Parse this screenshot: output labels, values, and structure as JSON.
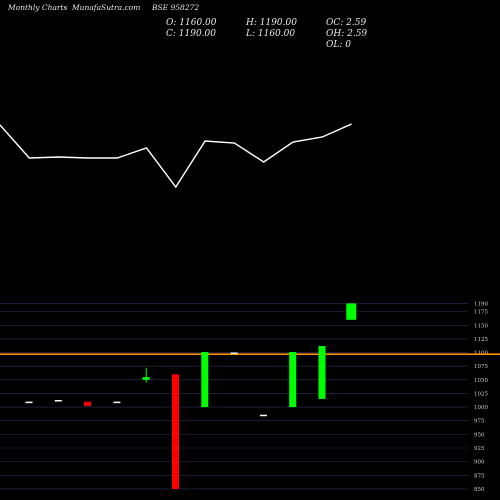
{
  "header": {
    "brand": "MunafaSutra.com",
    "left_label": "Monthly Charts",
    "separator": "-",
    "symbol": "BSE 958272"
  },
  "ohlc": {
    "open": "O: 1160.00",
    "high": "H: 1190.00",
    "oc": "OC: 2.59",
    "close": "C: 1190.00",
    "low": "L: 1160.00",
    "oh": "OH: 2.59",
    "ol": "OL: 0"
  },
  "colors": {
    "background": "#000000",
    "up": "#00ff00",
    "down": "#ff0000",
    "flat": "#ffffff",
    "line": "#ffffff",
    "grid": "#2e2e5a",
    "reference_line": "#ff8c00"
  },
  "chart_data": {
    "type": "candlestick",
    "y_axis": {
      "ticks": [
        1190,
        1175,
        1150,
        1125,
        1100,
        1075,
        1050,
        1025,
        1000,
        975,
        950,
        925,
        900,
        875,
        850
      ],
      "tick_labels": [
        "1190",
        "1175",
        "1150",
        "1125",
        "1100",
        "1075",
        "1050",
        "1025",
        "1000",
        "975",
        "950",
        "925",
        "900",
        "875",
        "850"
      ],
      "range": [
        848,
        1200
      ],
      "side": "right",
      "grid": true
    },
    "reference_line": {
      "value": 1097,
      "color": "#ff8c00"
    },
    "candles": [
      {
        "open": 1010,
        "close": 1010,
        "high": 1010,
        "low": 1010
      },
      {
        "open": 1013,
        "close": 1013,
        "high": 1013,
        "low": 1013
      },
      {
        "open": 1010,
        "close": 1002,
        "high": 1010,
        "low": 1002
      },
      {
        "open": 1010,
        "close": 1010,
        "high": 1010,
        "low": 1010
      },
      {
        "open": 1050,
        "close": 1055,
        "high": 1072,
        "low": 1045
      },
      {
        "open": 1060,
        "close": 850,
        "high": 1060,
        "low": 850
      },
      {
        "open": 1000,
        "close": 1101,
        "high": 1101,
        "low": 1000
      },
      {
        "open": 1100,
        "close": 1100,
        "high": 1100,
        "low": 1100
      },
      {
        "open": 986,
        "close": 986,
        "high": 986,
        "low": 986
      },
      {
        "open": 1000,
        "close": 1101,
        "high": 1101,
        "low": 1000
      },
      {
        "open": 1015,
        "close": 1112,
        "high": 1112,
        "low": 1015
      },
      {
        "open": 1160,
        "close": 1190,
        "high": 1190,
        "low": 1160
      }
    ],
    "line_series": {
      "note_units": "relative level (secondary indicator, no printed scale)",
      "values": [
        125,
        158,
        157,
        158,
        158,
        148,
        187,
        141,
        143,
        162,
        142,
        137,
        124
      ]
    }
  }
}
